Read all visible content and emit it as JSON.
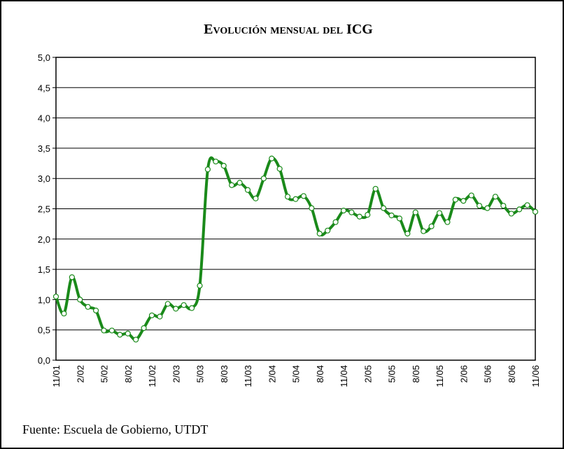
{
  "chart_data": {
    "type": "line",
    "title": "Evolución mensual del ICG",
    "source": "Fuente: Escuela de Gobierno, UTDT",
    "categories": [
      "11/01",
      null,
      null,
      "2/02",
      null,
      null,
      "5/02",
      null,
      null,
      "8/02",
      null,
      null,
      "11/02",
      null,
      null,
      "2/03",
      null,
      null,
      "5/03",
      null,
      null,
      "8/03",
      null,
      null,
      "11/03",
      null,
      null,
      "2/04",
      null,
      null,
      "5/04",
      null,
      null,
      "8/04",
      null,
      null,
      "11/04",
      null,
      null,
      "2/05",
      null,
      null,
      "5/05",
      null,
      null,
      "8/05",
      null,
      null,
      "11/05",
      null,
      null,
      "2/06",
      null,
      null,
      "5/06",
      null,
      null,
      "8/06",
      null,
      null,
      "11/06"
    ],
    "values": [
      1.05,
      0.77,
      1.37,
      1.0,
      0.88,
      0.82,
      0.49,
      0.49,
      0.42,
      0.44,
      0.34,
      0.53,
      0.74,
      0.72,
      0.93,
      0.85,
      0.91,
      0.86,
      1.23,
      3.15,
      3.28,
      3.21,
      2.89,
      2.93,
      2.81,
      2.67,
      3.0,
      3.33,
      3.16,
      2.7,
      2.66,
      2.71,
      2.51,
      2.09,
      2.14,
      2.28,
      2.47,
      2.44,
      2.37,
      2.4,
      2.83,
      2.51,
      2.39,
      2.34,
      2.09,
      2.44,
      2.13,
      2.21,
      2.43,
      2.28,
      2.65,
      2.63,
      2.72,
      2.55,
      2.51,
      2.7,
      2.55,
      2.42,
      2.49,
      2.56,
      2.45
    ],
    "color": "#1a8a1a",
    "ylim": [
      0,
      5
    ],
    "yticks": [
      {
        "value": 0,
        "label": "0,0"
      },
      {
        "value": 0.5,
        "label": "0,5"
      },
      {
        "value": 1,
        "label": "1,0"
      },
      {
        "value": 1.5,
        "label": "1,5"
      },
      {
        "value": 2,
        "label": "2,0"
      },
      {
        "value": 2.5,
        "label": "2,5"
      },
      {
        "value": 3,
        "label": "3,0"
      },
      {
        "value": 3.5,
        "label": "3,5"
      },
      {
        "value": 4,
        "label": "4,0"
      },
      {
        "value": 4.5,
        "label": "4,5"
      },
      {
        "value": 5,
        "label": "5,0"
      }
    ],
    "grid": true
  }
}
